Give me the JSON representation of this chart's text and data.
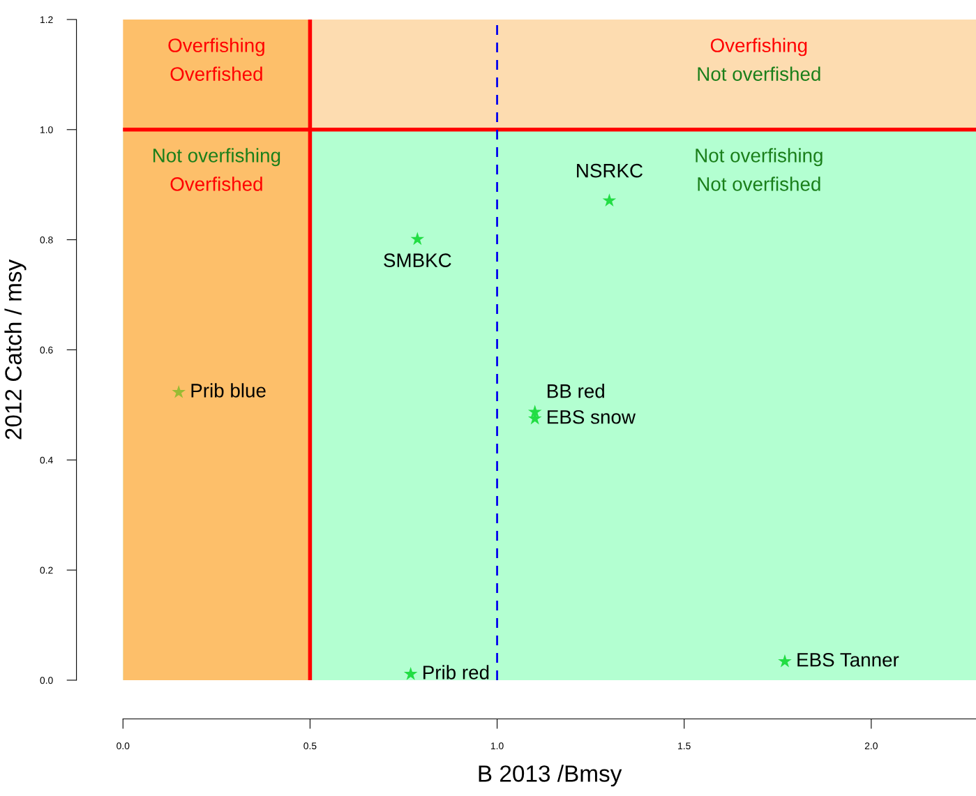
{
  "chart_data": {
    "type": "scatter",
    "xlabel": "B 2013 /Bmsy",
    "ylabel": "2012 Catch / msy",
    "series": [
      {
        "name": "Prib blue",
        "color": "#99bb33",
        "x": [
          0.149
        ],
        "values": [
          0.523
        ]
      },
      {
        "name": "SMBKC",
        "color": "#22dd44",
        "x": [
          0.787
        ],
        "values": [
          0.801
        ]
      },
      {
        "name": "NSRKC",
        "color": "#22dd44",
        "x": [
          1.3
        ],
        "values": [
          0.871
        ]
      },
      {
        "name": "BB red",
        "color": "#22dd44",
        "x": [
          1.101
        ],
        "values": [
          0.487
        ]
      },
      {
        "name": "EBS snow",
        "color": "#22dd44",
        "x": [
          1.101
        ],
        "values": [
          0.475
        ]
      },
      {
        "name": "Prib red",
        "color": "#22dd44",
        "x": [
          0.769
        ],
        "values": [
          0.011
        ]
      },
      {
        "name": "EBS Tanner",
        "color": "#22dd44",
        "x": [
          1.769
        ],
        "values": [
          0.034
        ]
      }
    ],
    "marker": "star",
    "grid": false,
    "xlim": [
      0,
      2.28
    ],
    "xticks": [
      {
        "value": 0,
        "label": "0.0"
      },
      {
        "value": 0.5,
        "label": "0.5"
      },
      {
        "value": 1,
        "label": "1.0"
      },
      {
        "value": 1.5,
        "label": "1.5"
      },
      {
        "value": 2,
        "label": "2.0"
      }
    ],
    "ylim": [
      0,
      1.2
    ],
    "yticks": [
      {
        "value": 0,
        "label": "0.0"
      },
      {
        "value": 0.2,
        "label": "0.2"
      },
      {
        "value": 0.4,
        "label": "0.4"
      },
      {
        "value": 0.6,
        "label": "0.6"
      },
      {
        "value": 0.8,
        "label": "0.8"
      },
      {
        "value": 1,
        "label": "1.0"
      },
      {
        "value": 1.2,
        "label": "1.2"
      }
    ],
    "bands": [
      {
        "axis": "y",
        "from": 0,
        "to": 1,
        "color": "#b3ffd1"
      },
      {
        "axis": "y",
        "from": 1,
        "to": 1.2,
        "color": "#fddcb0"
      },
      {
        "axis": "x",
        "from": 0,
        "to": 0.5,
        "color": "#fdbf6a"
      }
    ],
    "ref_lines": [
      {
        "axis": "x",
        "value": 0.5,
        "color": "#ff0000",
        "line_style": "solid"
      },
      {
        "axis": "y",
        "value": 1,
        "color": "#ff0000",
        "line_style": "solid"
      },
      {
        "axis": "x",
        "value": 1,
        "color": "#0000ee",
        "line_style": "dashed"
      }
    ],
    "annotations": [
      "Overfishing",
      "Overfished",
      "Overfishing",
      "Not overfished",
      "Not overfishing",
      "Overfished",
      "Not overfishing",
      "Not overfished"
    ]
  }
}
